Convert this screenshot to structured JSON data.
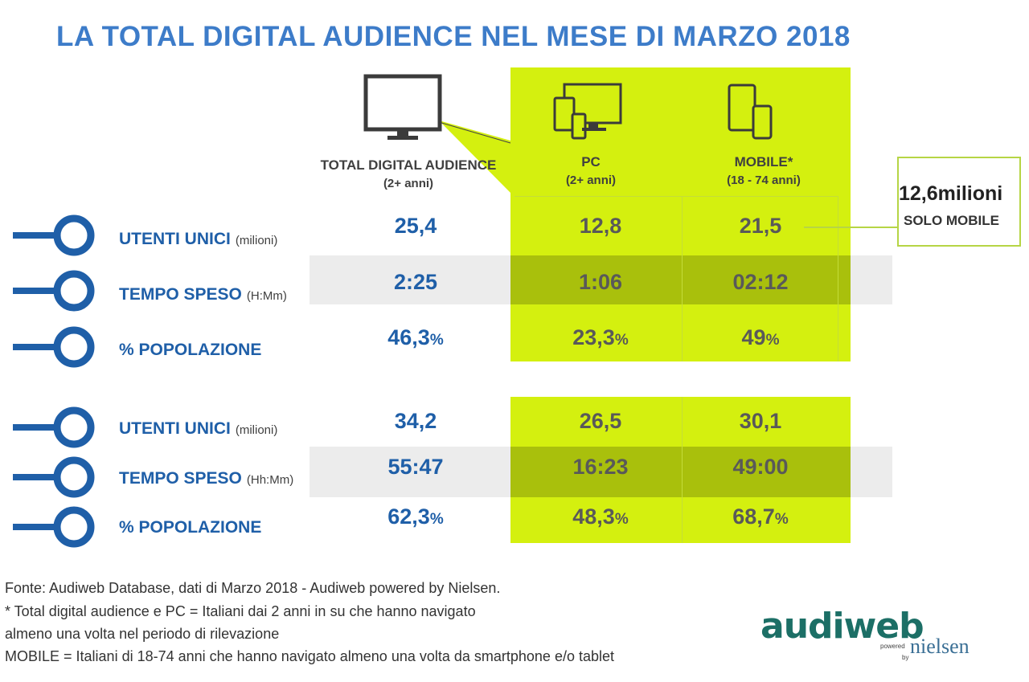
{
  "title": "LA TOTAL DIGITAL AUDIENCE NEL MESE DI MARZO 2018",
  "columns": {
    "total": {
      "name": "TOTAL DIGITAL AUDIENCE",
      "sub": "(2+ anni)",
      "icon": "monitor-icon"
    },
    "pc": {
      "name": "PC",
      "sub": "(2+ anni)",
      "icon": "devices-icon"
    },
    "mobile": {
      "name": "MOBILE*",
      "sub": "(18 - 74 anni)",
      "icon": "mobile-tablet-icon"
    }
  },
  "section1": {
    "rows": [
      {
        "label": "UTENTI UNICI",
        "unit": "(milioni)",
        "total": "25,4",
        "total_pct": "",
        "pc": "12,8",
        "pc_pct": "",
        "mobile": "21,5",
        "mobile_pct": ""
      },
      {
        "label": "TEMPO SPESO",
        "unit": "(H:Mm)",
        "total": "2:25",
        "total_pct": "",
        "pc": "1:06",
        "pc_pct": "",
        "mobile": "02:12",
        "mobile_pct": ""
      },
      {
        "label": "% POPOLAZIONE",
        "unit": "",
        "total": "46,3",
        "total_pct": "%",
        "pc": "23,3",
        "pc_pct": "%",
        "mobile": "49",
        "mobile_pct": "%"
      }
    ]
  },
  "section2": {
    "rows": [
      {
        "label": "UTENTI UNICI",
        "unit": "(milioni)",
        "total": "34,2",
        "total_pct": "",
        "pc": "26,5",
        "pc_pct": "",
        "mobile": "30,1",
        "mobile_pct": ""
      },
      {
        "label": "TEMPO SPESO",
        "unit": "(Hh:Mm)",
        "total": "55:47",
        "total_pct": "",
        "pc": "16:23",
        "pc_pct": "",
        "mobile": "49:00",
        "mobile_pct": ""
      },
      {
        "label": "% POPOLAZIONE",
        "unit": "",
        "total": "62,3",
        "total_pct": "%",
        "pc": "48,3",
        "pc_pct": "%",
        "mobile": "68,7",
        "mobile_pct": "%"
      }
    ]
  },
  "callout": {
    "value": "12,6",
    "value_unit": "milioni",
    "text": "SOLO MOBILE"
  },
  "footnotes": [
    "Fonte: Audiweb Database, dati di Marzo 2018 - Audiweb powered by Nielsen.",
    "* Total digital audience e PC = Italiani dai 2 anni in su che hanno navigato",
    "almeno una volta nel periodo di rilevazione",
    "MOBILE = Italiani di 18-74 anni che hanno navigato almeno una volta da smartphone e/o tablet"
  ],
  "logo": {
    "brand": "audiweb",
    "powered": "powered",
    "by": "by",
    "partner": "nielsen"
  },
  "colors": {
    "accent_blue": "#3d7cc9",
    "label_blue": "#1f5fa8",
    "green_panel": "#d4f00f",
    "logo_green": "#1c6f66"
  }
}
